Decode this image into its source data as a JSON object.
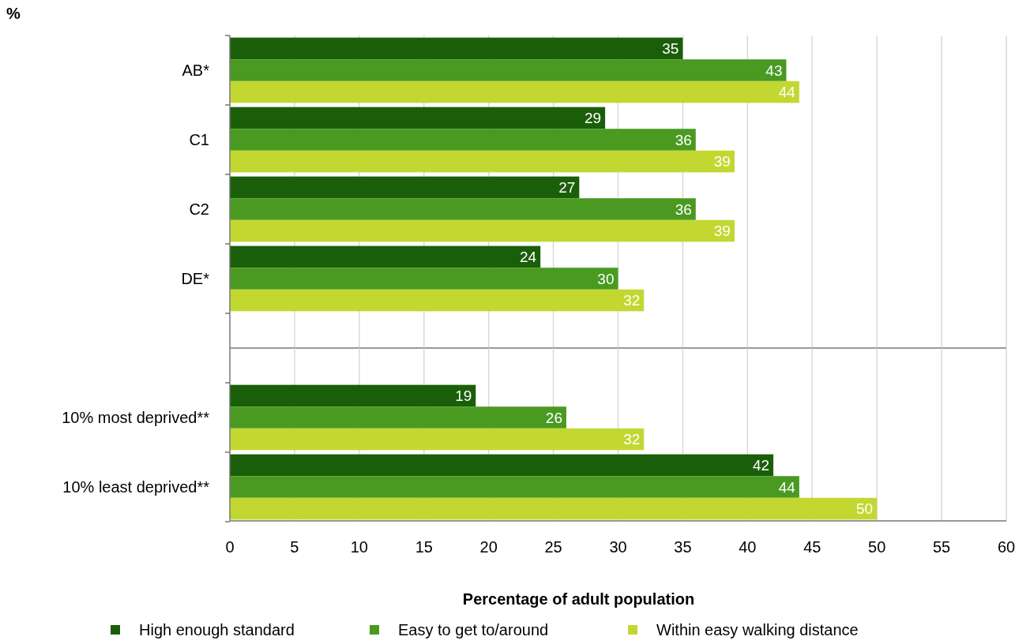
{
  "chart_data": [
    {
      "type": "bar",
      "orientation": "horizontal",
      "ylabel": "%",
      "categories": [
        "AB*",
        "C1",
        "C2",
        "DE*"
      ],
      "series": [
        {
          "color": "#1a5e0a",
          "values": [
            35,
            29,
            27,
            24
          ]
        },
        {
          "color": "#4a9a22",
          "values": [
            43,
            36,
            36,
            30
          ]
        },
        {
          "color": "#c2d831",
          "values": [
            44,
            39,
            39,
            32
          ]
        }
      ],
      "xlim": [
        0,
        60
      ],
      "xticks": [
        0,
        5,
        10,
        15,
        20,
        25,
        30,
        35,
        40,
        45,
        50,
        55,
        60
      ],
      "tick_labels": "y",
      "grid": "x",
      "data_labels": true
    },
    {
      "type": "bar",
      "orientation": "horizontal",
      "xlabel": "Percentage of adult population",
      "categories": [
        "10% most deprived**",
        "10% least deprived**"
      ],
      "series": [
        {
          "name": "High enough standard",
          "color": "#1a5e0a",
          "values": [
            19,
            42
          ]
        },
        {
          "name": "Easy to get to/around",
          "color": "#4a9a22",
          "values": [
            26,
            44
          ]
        },
        {
          "name": "Within easy walking distance",
          "color": "#c2d831",
          "values": [
            32,
            50
          ]
        }
      ],
      "xlim": [
        0,
        60
      ],
      "xticks": [
        0,
        5,
        10,
        15,
        20,
        25,
        30,
        35,
        40,
        45,
        50,
        55,
        60
      ],
      "grid": "x",
      "legend": "bottom",
      "data_labels": true
    }
  ]
}
